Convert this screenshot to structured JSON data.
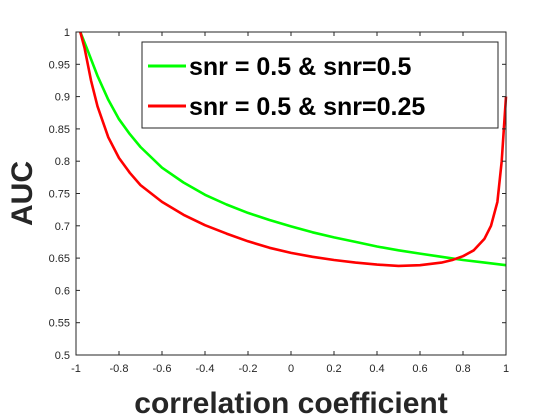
{
  "chart_data": {
    "type": "line",
    "xlabel": "correlation coefficient",
    "ylabel": "AUC",
    "xlim": [
      -1,
      1
    ],
    "ylim": [
      0.5,
      1
    ],
    "xticks": [
      "-1",
      "-0.8",
      "-0.6",
      "-0.4",
      "-0.2",
      "0",
      "0.2",
      "0.4",
      "0.6",
      "0.8",
      "1"
    ],
    "yticks": [
      "0.5",
      "0.55",
      "0.6",
      "0.65",
      "0.7",
      "0.75",
      "0.8",
      "0.85",
      "0.9",
      "0.95",
      "1"
    ],
    "grid": false,
    "legend_position": "top-right",
    "series": [
      {
        "name": "snr = 0.5 & snr=0.5",
        "color": "#00ff00",
        "x": [
          -0.98,
          -0.95,
          -0.9,
          -0.85,
          -0.8,
          -0.75,
          -0.7,
          -0.6,
          -0.5,
          -0.4,
          -0.3,
          -0.2,
          -0.1,
          0.0,
          0.1,
          0.2,
          0.3,
          0.4,
          0.5,
          0.6,
          0.7,
          0.8,
          0.9,
          1.0
        ],
        "y": [
          1.0,
          0.975,
          0.932,
          0.895,
          0.865,
          0.842,
          0.822,
          0.79,
          0.767,
          0.748,
          0.733,
          0.72,
          0.709,
          0.699,
          0.69,
          0.682,
          0.675,
          0.668,
          0.662,
          0.657,
          0.652,
          0.647,
          0.643,
          0.639
        ]
      },
      {
        "name": "snr = 0.5 & snr=0.25",
        "color": "#ff0000",
        "x": [
          -0.98,
          -0.96,
          -0.93,
          -0.9,
          -0.85,
          -0.8,
          -0.75,
          -0.7,
          -0.6,
          -0.5,
          -0.4,
          -0.3,
          -0.2,
          -0.1,
          0.0,
          0.1,
          0.2,
          0.3,
          0.4,
          0.5,
          0.6,
          0.7,
          0.75,
          0.8,
          0.85,
          0.9,
          0.93,
          0.96,
          0.98,
          1.0
        ],
        "y": [
          1.0,
          0.975,
          0.925,
          0.885,
          0.837,
          0.805,
          0.782,
          0.763,
          0.737,
          0.717,
          0.701,
          0.688,
          0.676,
          0.666,
          0.658,
          0.652,
          0.647,
          0.643,
          0.64,
          0.638,
          0.639,
          0.643,
          0.647,
          0.653,
          0.662,
          0.68,
          0.7,
          0.737,
          0.8,
          0.9
        ]
      }
    ]
  }
}
